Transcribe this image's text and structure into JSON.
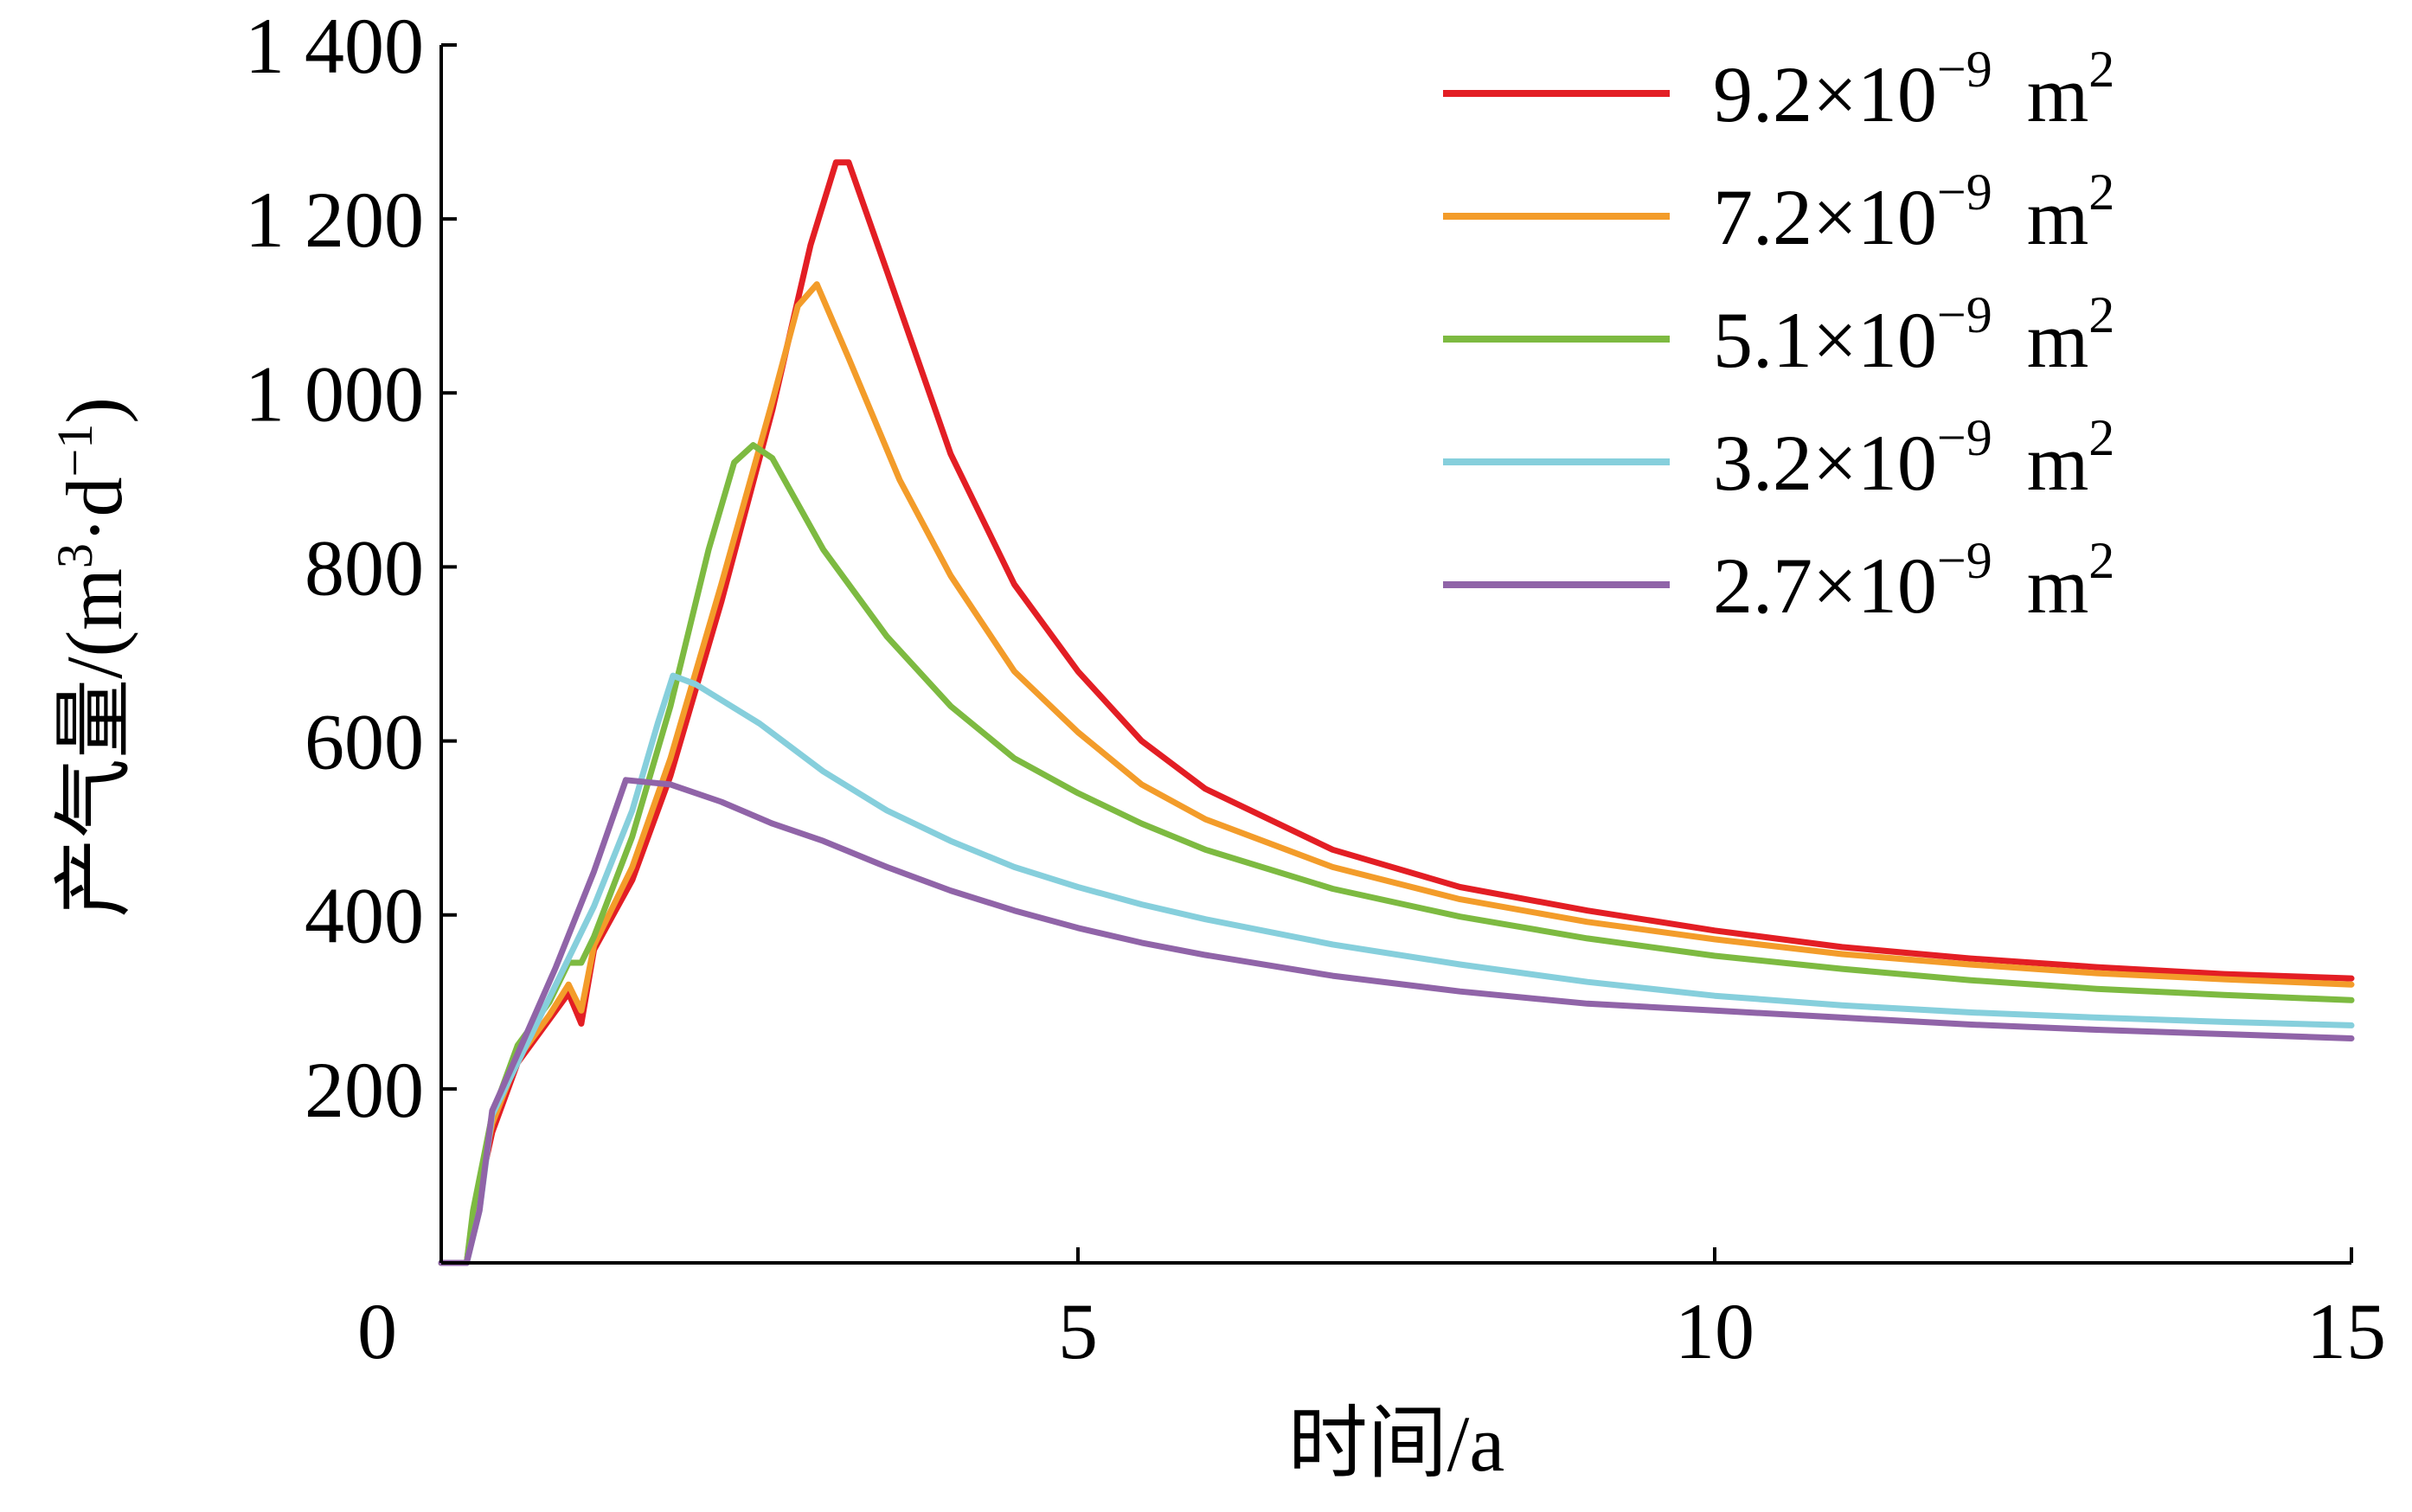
{
  "chart_data": {
    "type": "line",
    "xlabel": "时间/a",
    "ylabel_prefix": "产气量/(m",
    "ylabel_sup1": "3",
    "ylabel_mid": "·d",
    "ylabel_sup2": "−1",
    "ylabel_suffix": ")",
    "xlim": [
      0,
      15
    ],
    "ylim": [
      0,
      1400
    ],
    "xticks": [
      0,
      5,
      10,
      15
    ],
    "xtick_labels": [
      "0",
      "5",
      "10",
      "15"
    ],
    "yticks": [
      200,
      400,
      600,
      800,
      1000,
      1200,
      1400
    ],
    "ytick_labels": [
      "200",
      "400",
      "600",
      "800",
      "1 000",
      "1 200",
      "1 400"
    ],
    "legend_position": "top-right",
    "legend_unit_base": "10",
    "legend_unit_exp": "−9",
    "legend_unit_m": "m",
    "legend_unit_exp2": "2",
    "series": [
      {
        "name": "9.2×10−9 m2",
        "coef": "9.2×",
        "color": "#e31e24",
        "points": [
          [
            0,
            0
          ],
          [
            0.2,
            0
          ],
          [
            0.25,
            50
          ],
          [
            0.4,
            150
          ],
          [
            0.6,
            230
          ],
          [
            0.85,
            280
          ],
          [
            1.0,
            310
          ],
          [
            1.1,
            275
          ],
          [
            1.2,
            360
          ],
          [
            1.5,
            440
          ],
          [
            1.8,
            560
          ],
          [
            2.2,
            760
          ],
          [
            2.6,
            980
          ],
          [
            2.9,
            1170
          ],
          [
            3.1,
            1265
          ],
          [
            3.2,
            1265
          ],
          [
            3.5,
            1140
          ],
          [
            4.0,
            930
          ],
          [
            4.5,
            780
          ],
          [
            5.0,
            680
          ],
          [
            5.5,
            600
          ],
          [
            6.0,
            545
          ],
          [
            7.0,
            475
          ],
          [
            8.0,
            432
          ],
          [
            9.0,
            405
          ],
          [
            10.0,
            382
          ],
          [
            11.0,
            363
          ],
          [
            12.0,
            350
          ],
          [
            13.0,
            340
          ],
          [
            14.0,
            332
          ],
          [
            15.0,
            327
          ]
        ]
      },
      {
        "name": "7.2×10−9 m2",
        "coef": "7.2×",
        "color": "#f39c2a",
        "points": [
          [
            0,
            0
          ],
          [
            0.2,
            0
          ],
          [
            0.25,
            55
          ],
          [
            0.4,
            160
          ],
          [
            0.6,
            235
          ],
          [
            0.85,
            285
          ],
          [
            1.0,
            320
          ],
          [
            1.1,
            290
          ],
          [
            1.2,
            365
          ],
          [
            1.5,
            455
          ],
          [
            1.8,
            580
          ],
          [
            2.2,
            780
          ],
          [
            2.6,
            990
          ],
          [
            2.8,
            1100
          ],
          [
            2.95,
            1125
          ],
          [
            3.2,
            1040
          ],
          [
            3.6,
            900
          ],
          [
            4.0,
            790
          ],
          [
            4.5,
            680
          ],
          [
            5.0,
            610
          ],
          [
            5.5,
            550
          ],
          [
            6.0,
            510
          ],
          [
            7.0,
            455
          ],
          [
            8.0,
            418
          ],
          [
            9.0,
            392
          ],
          [
            10.0,
            372
          ],
          [
            11.0,
            355
          ],
          [
            12.0,
            343
          ],
          [
            13.0,
            333
          ],
          [
            14.0,
            326
          ],
          [
            15.0,
            320
          ]
        ]
      },
      {
        "name": "5.1×10−9 m2",
        "coef": "5.1×",
        "color": "#7dba41",
        "points": [
          [
            0,
            0
          ],
          [
            0.2,
            0
          ],
          [
            0.25,
            60
          ],
          [
            0.4,
            170
          ],
          [
            0.6,
            250
          ],
          [
            0.85,
            300
          ],
          [
            1.0,
            345
          ],
          [
            1.1,
            345
          ],
          [
            1.2,
            375
          ],
          [
            1.5,
            490
          ],
          [
            1.8,
            640
          ],
          [
            2.1,
            820
          ],
          [
            2.3,
            920
          ],
          [
            2.45,
            940
          ],
          [
            2.6,
            925
          ],
          [
            3.0,
            820
          ],
          [
            3.5,
            720
          ],
          [
            4.0,
            640
          ],
          [
            4.5,
            580
          ],
          [
            5.0,
            540
          ],
          [
            5.5,
            505
          ],
          [
            6.0,
            475
          ],
          [
            7.0,
            430
          ],
          [
            8.0,
            398
          ],
          [
            9.0,
            373
          ],
          [
            10.0,
            353
          ],
          [
            11.0,
            338
          ],
          [
            12.0,
            325
          ],
          [
            13.0,
            315
          ],
          [
            14.0,
            308
          ],
          [
            15.0,
            302
          ]
        ]
      },
      {
        "name": "3.2×10−9 m2",
        "coef": "3.2×",
        "color": "#86cfdc",
        "points": [
          [
            0,
            0
          ],
          [
            0.2,
            0
          ],
          [
            0.3,
            60
          ],
          [
            0.4,
            170
          ],
          [
            0.6,
            230
          ],
          [
            0.9,
            320
          ],
          [
            1.2,
            410
          ],
          [
            1.5,
            520
          ],
          [
            1.7,
            620
          ],
          [
            1.82,
            675
          ],
          [
            2.0,
            665
          ],
          [
            2.5,
            620
          ],
          [
            3.0,
            565
          ],
          [
            3.5,
            520
          ],
          [
            4.0,
            485
          ],
          [
            4.5,
            455
          ],
          [
            5.0,
            432
          ],
          [
            5.5,
            412
          ],
          [
            6.0,
            395
          ],
          [
            7.0,
            366
          ],
          [
            8.0,
            343
          ],
          [
            9.0,
            323
          ],
          [
            10.0,
            307
          ],
          [
            11.0,
            296
          ],
          [
            12.0,
            288
          ],
          [
            13.0,
            282
          ],
          [
            14.0,
            277
          ],
          [
            15.0,
            273
          ]
        ]
      },
      {
        "name": "2.7×10−9 m2",
        "coef": "2.7×",
        "color": "#9064a8",
        "points": [
          [
            0,
            0
          ],
          [
            0.2,
            0
          ],
          [
            0.3,
            60
          ],
          [
            0.4,
            175
          ],
          [
            0.6,
            240
          ],
          [
            0.9,
            340
          ],
          [
            1.2,
            450
          ],
          [
            1.45,
            555
          ],
          [
            1.8,
            550
          ],
          [
            2.2,
            530
          ],
          [
            2.6,
            505
          ],
          [
            3.0,
            485
          ],
          [
            3.5,
            455
          ],
          [
            4.0,
            428
          ],
          [
            4.5,
            405
          ],
          [
            5.0,
            385
          ],
          [
            5.5,
            368
          ],
          [
            6.0,
            354
          ],
          [
            7.0,
            330
          ],
          [
            8.0,
            312
          ],
          [
            9.0,
            298
          ],
          [
            10.0,
            290
          ],
          [
            11.0,
            282
          ],
          [
            12.0,
            274
          ],
          [
            13.0,
            268
          ],
          [
            14.0,
            263
          ],
          [
            15.0,
            258
          ]
        ]
      }
    ]
  }
}
